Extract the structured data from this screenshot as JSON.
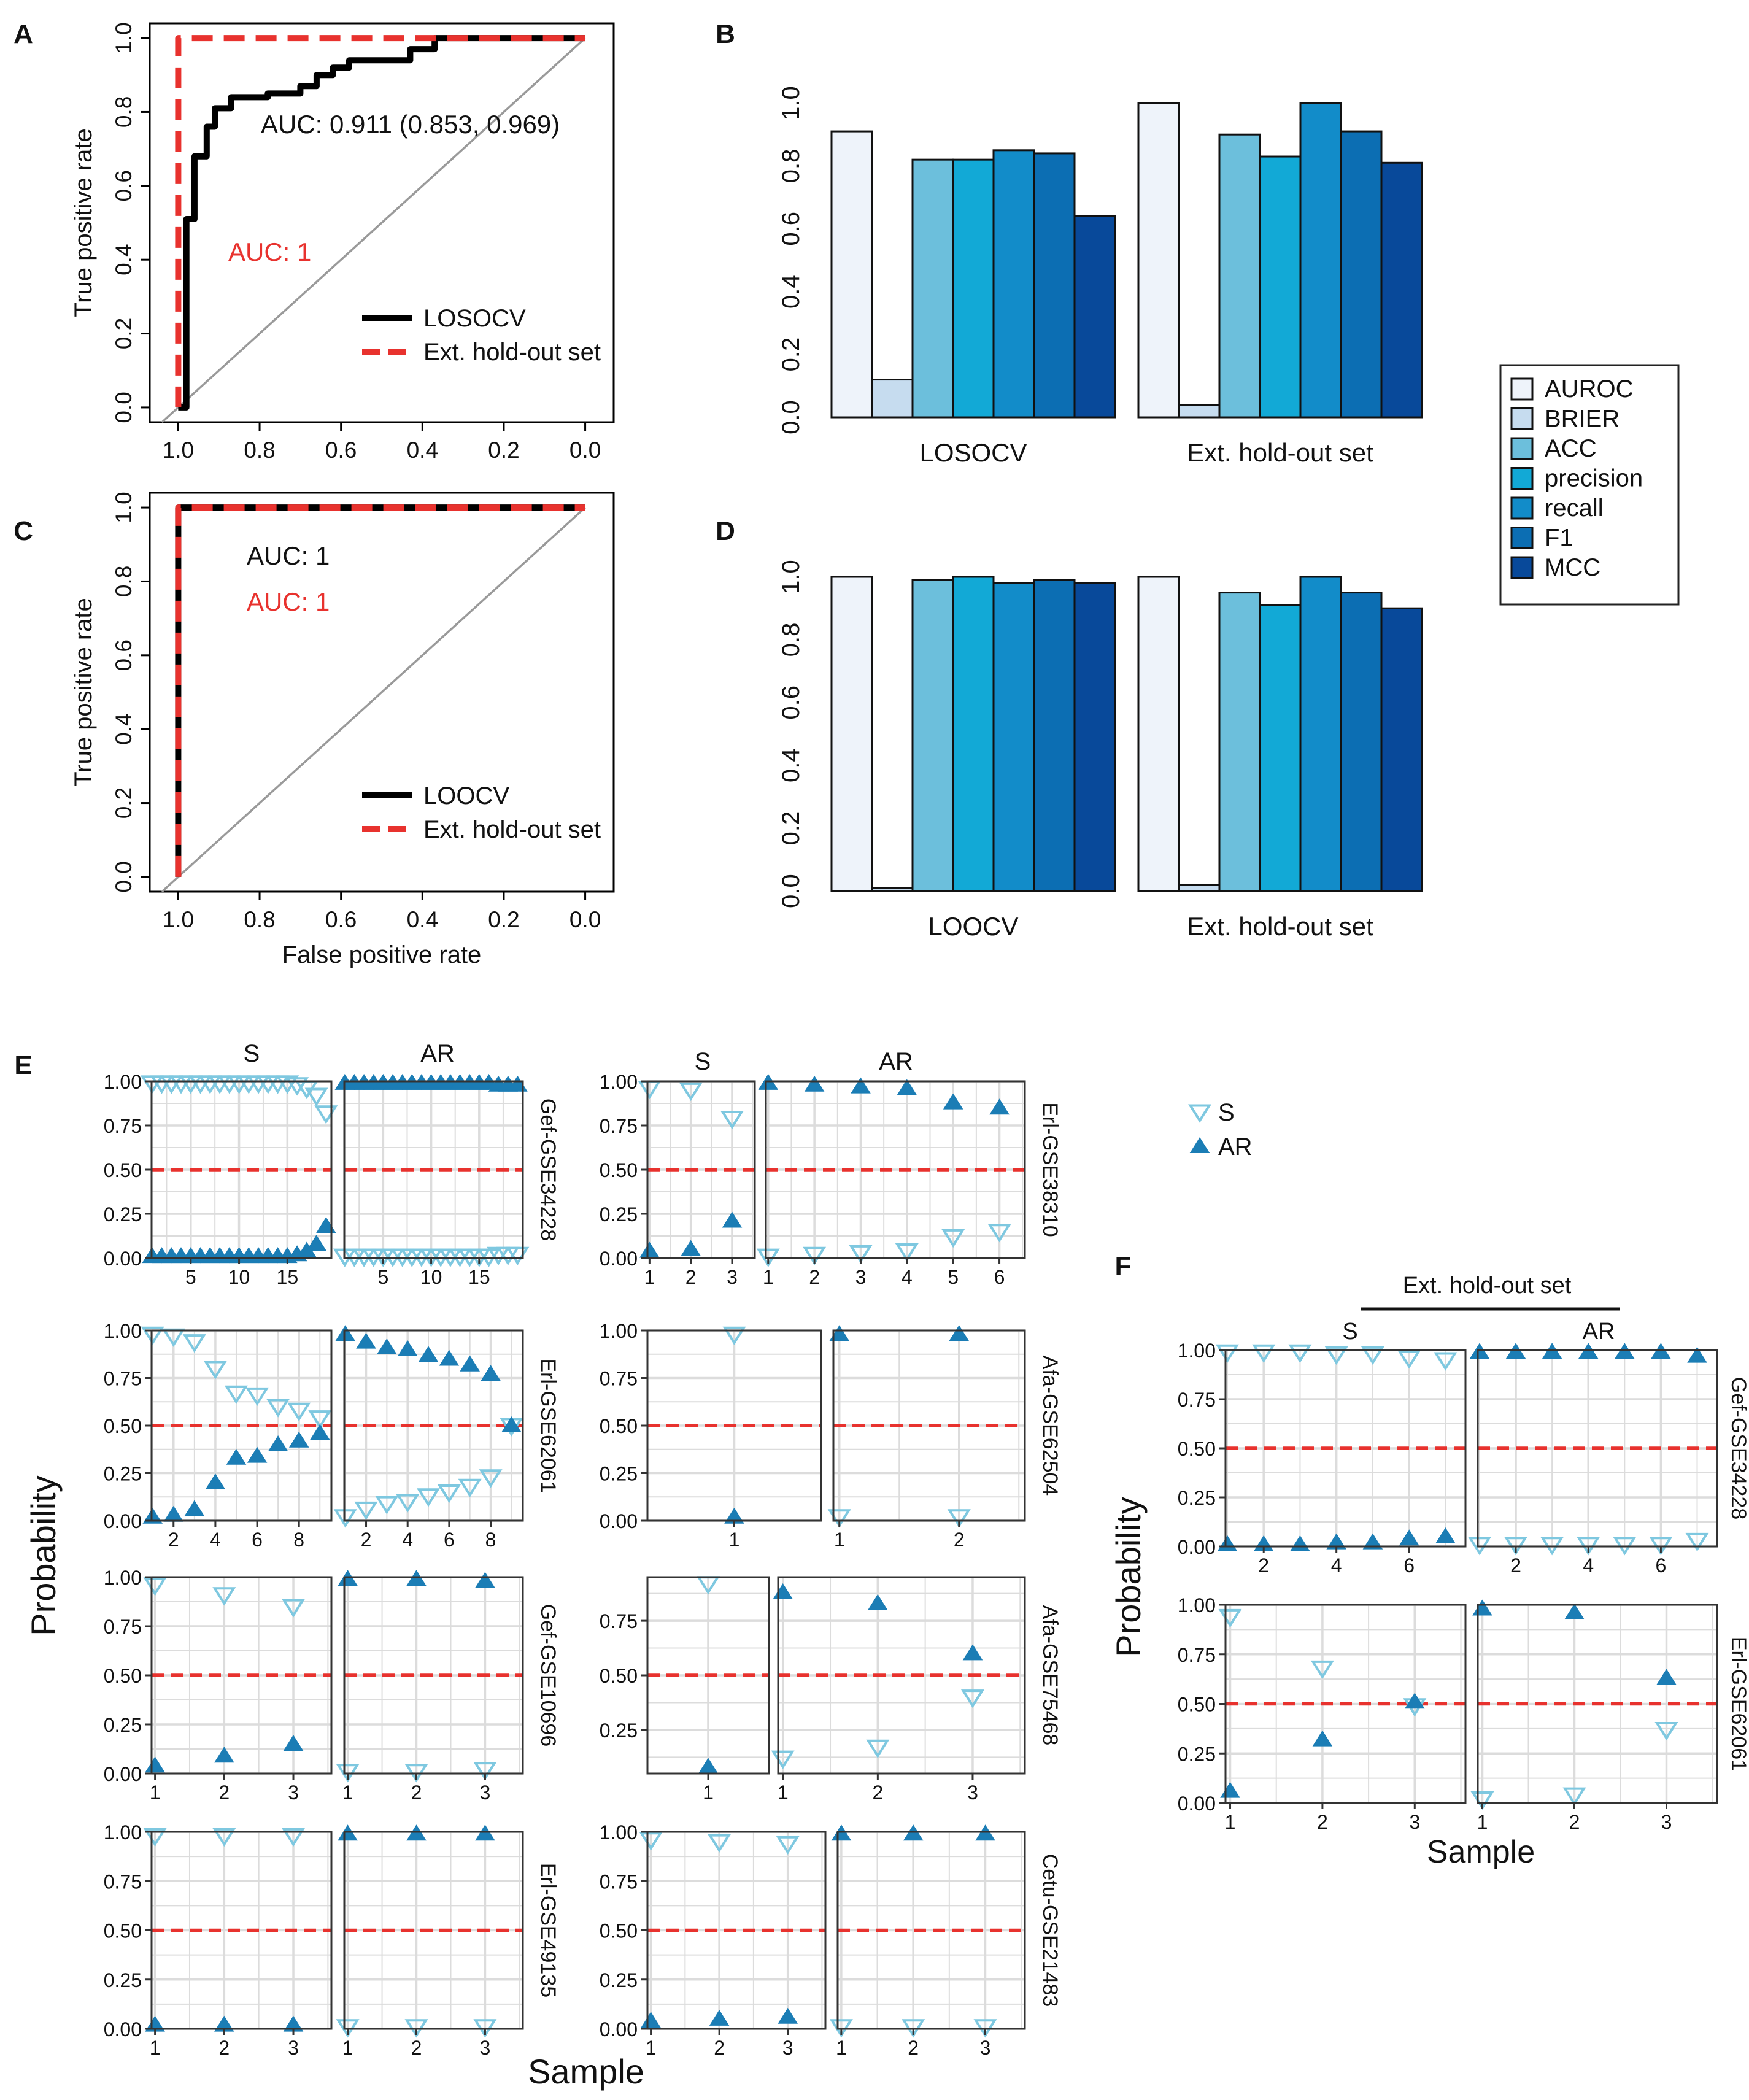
{
  "figure": {
    "panel_labels": [
      "A",
      "B",
      "C",
      "D",
      "E",
      "F"
    ]
  },
  "colors": {
    "black": "#000000",
    "red": "#e8322e",
    "diag": "#9a9a9a",
    "grid": "#dcdcdc",
    "s": "#7ec8e0",
    "ar": "#1b7db5",
    "metrics": [
      "#eef3fa",
      "#c6dcef",
      "#6cbfdc",
      "#12a9d6",
      "#128cc9",
      "#0c6eb3",
      "#08499a"
    ]
  },
  "chart_data": [
    {
      "id": "A",
      "type": "line",
      "xlabel": "",
      "ylabel": "True positive rate",
      "x_ticks": [
        "1.0",
        "0.8",
        "0.6",
        "0.4",
        "0.2",
        "0.0"
      ],
      "y_ticks": [
        "0.0",
        "0.2",
        "0.4",
        "0.6",
        "0.8",
        "1.0"
      ],
      "annotations": [
        {
          "text": "AUC: 0.911 (0.853, 0.969)",
          "color": "black"
        },
        {
          "text": "AUC: 1",
          "color": "red"
        }
      ],
      "legend": [
        "LOSOCV",
        "Ext. hold-out set"
      ],
      "series": [
        {
          "name": "LOSOCV",
          "style": "solid",
          "points": [
            [
              1.0,
              0.0
            ],
            [
              0.98,
              0.0
            ],
            [
              0.98,
              0.51
            ],
            [
              0.96,
              0.51
            ],
            [
              0.96,
              0.68
            ],
            [
              0.93,
              0.68
            ],
            [
              0.93,
              0.76
            ],
            [
              0.91,
              0.76
            ],
            [
              0.91,
              0.81
            ],
            [
              0.87,
              0.81
            ],
            [
              0.87,
              0.84
            ],
            [
              0.78,
              0.84
            ],
            [
              0.78,
              0.85
            ],
            [
              0.7,
              0.85
            ],
            [
              0.7,
              0.87
            ],
            [
              0.66,
              0.87
            ],
            [
              0.66,
              0.9
            ],
            [
              0.62,
              0.9
            ],
            [
              0.62,
              0.92
            ],
            [
              0.58,
              0.92
            ],
            [
              0.58,
              0.94
            ],
            [
              0.43,
              0.94
            ],
            [
              0.43,
              0.97
            ],
            [
              0.37,
              0.97
            ],
            [
              0.37,
              1.0
            ],
            [
              0.0,
              1.0
            ]
          ]
        },
        {
          "name": "Ext. hold-out set",
          "style": "dashed",
          "points": [
            [
              1.0,
              0.0
            ],
            [
              1.0,
              1.0
            ],
            [
              0.0,
              1.0
            ]
          ]
        }
      ]
    },
    {
      "id": "B",
      "type": "bar",
      "groups": [
        "LOSOCV",
        "Ext. hold-out set"
      ],
      "y_ticks": [
        "0.0",
        "0.2",
        "0.4",
        "0.6",
        "0.8",
        "1.0"
      ],
      "series": [
        {
          "name": "AUROC",
          "values": [
            0.91,
            1.0
          ]
        },
        {
          "name": "BRIER",
          "values": [
            0.12,
            0.04
          ]
        },
        {
          "name": "ACC",
          "values": [
            0.82,
            0.9
          ]
        },
        {
          "name": "precision",
          "values": [
            0.82,
            0.83
          ]
        },
        {
          "name": "recall",
          "values": [
            0.85,
            1.0
          ]
        },
        {
          "name": "F1",
          "values": [
            0.84,
            0.91
          ]
        },
        {
          "name": "MCC",
          "values": [
            0.64,
            0.81
          ]
        }
      ]
    },
    {
      "id": "C",
      "type": "line",
      "xlabel": "False positive rate",
      "ylabel": "True positive rate",
      "x_ticks": [
        "1.0",
        "0.8",
        "0.6",
        "0.4",
        "0.2",
        "0.0"
      ],
      "y_ticks": [
        "0.0",
        "0.2",
        "0.4",
        "0.6",
        "0.8",
        "1.0"
      ],
      "annotations": [
        {
          "text": "AUC: 1",
          "color": "black"
        },
        {
          "text": "AUC: 1",
          "color": "red"
        }
      ],
      "legend": [
        "LOOCV",
        "Ext. hold-out set"
      ],
      "series": [
        {
          "name": "LOOCV",
          "style": "solid",
          "points": [
            [
              1.0,
              0.0
            ],
            [
              1.0,
              1.0
            ],
            [
              0.0,
              1.0
            ]
          ]
        },
        {
          "name": "Ext. hold-out set",
          "style": "dashed",
          "points": [
            [
              1.0,
              0.0
            ],
            [
              1.0,
              1.0
            ],
            [
              0.0,
              1.0
            ]
          ]
        }
      ]
    },
    {
      "id": "D",
      "type": "bar",
      "groups": [
        "LOOCV",
        "Ext. hold-out set"
      ],
      "y_ticks": [
        "0.0",
        "0.2",
        "0.4",
        "0.6",
        "0.8",
        "1.0"
      ],
      "series": [
        {
          "name": "AUROC",
          "values": [
            1.0,
            1.0
          ]
        },
        {
          "name": "BRIER",
          "values": [
            0.01,
            0.02
          ]
        },
        {
          "name": "ACC",
          "values": [
            0.99,
            0.95
          ]
        },
        {
          "name": "precision",
          "values": [
            1.0,
            0.91
          ]
        },
        {
          "name": "recall",
          "values": [
            0.98,
            1.0
          ]
        },
        {
          "name": "F1",
          "values": [
            0.99,
            0.95
          ]
        },
        {
          "name": "MCC",
          "values": [
            0.98,
            0.9
          ]
        }
      ]
    },
    {
      "id": "E",
      "type": "scatter",
      "ylabel": "Probability",
      "xlabel": "Sample",
      "facet_cols": [
        "S",
        "AR"
      ],
      "legend": [
        "S",
        "AR"
      ],
      "threshold": 0.5,
      "panels": [
        {
          "label": "Gef-GSE34228",
          "y_ticks": [
            "0.00",
            "0.25",
            "0.50",
            "0.75",
            "1.00"
          ],
          "ymin": 0,
          "ymax": 1,
          "S": {
            "n": 19,
            "ticks": [
              5,
              10,
              15
            ],
            "s": [
              0.99,
              0.99,
              0.99,
              0.99,
              0.99,
              0.99,
              0.99,
              0.99,
              0.99,
              0.99,
              0.99,
              0.99,
              0.99,
              0.99,
              0.99,
              0.98,
              0.96,
              0.92,
              0.82
            ],
            "ar": [
              0.01,
              0.01,
              0.01,
              0.01,
              0.01,
              0.01,
              0.01,
              0.01,
              0.01,
              0.01,
              0.01,
              0.01,
              0.01,
              0.01,
              0.01,
              0.02,
              0.04,
              0.08,
              0.18
            ]
          },
          "AR": {
            "n": 19,
            "ticks": [
              5,
              10,
              15
            ],
            "s": [
              0.01,
              0.01,
              0.01,
              0.01,
              0.01,
              0.01,
              0.01,
              0.01,
              0.01,
              0.01,
              0.01,
              0.01,
              0.01,
              0.01,
              0.01,
              0.01,
              0.02,
              0.02,
              0.02
            ],
            "ar": [
              0.99,
              0.99,
              0.99,
              0.99,
              0.99,
              0.99,
              0.99,
              0.99,
              0.99,
              0.99,
              0.99,
              0.99,
              0.99,
              0.99,
              0.99,
              0.99,
              0.98,
              0.98,
              0.98
            ]
          }
        },
        {
          "label": "Erl-GSE38310",
          "y_ticks": [
            "0.00",
            "0.25",
            "0.50",
            "0.75",
            "1.00"
          ],
          "ymin": 0,
          "ymax": 1,
          "S": {
            "n": 3,
            "ticks": [
              1,
              2,
              3
            ],
            "s": [
              0.96,
              0.95,
              0.79
            ],
            "ar": [
              0.04,
              0.05,
              0.21
            ]
          },
          "AR": {
            "n": 6,
            "ticks": [
              1,
              2,
              3,
              4,
              5,
              6
            ],
            "s": [
              0.01,
              0.02,
              0.03,
              0.04,
              0.12,
              0.15
            ],
            "ar": [
              0.99,
              0.98,
              0.97,
              0.96,
              0.88,
              0.85
            ]
          }
        },
        {
          "label": "Erl-GSE62061",
          "y_ticks": [
            "0.00",
            "0.25",
            "0.50",
            "0.75",
            "1.00"
          ],
          "ymin": 0,
          "ymax": 1,
          "S": {
            "n": 9,
            "ticks": [
              2,
              4,
              6,
              8
            ],
            "s": [
              0.98,
              0.97,
              0.94,
              0.8,
              0.67,
              0.66,
              0.6,
              0.58,
              0.54
            ],
            "ar": [
              0.02,
              0.03,
              0.06,
              0.2,
              0.33,
              0.34,
              0.4,
              0.42,
              0.46
            ]
          },
          "AR": {
            "n": 9,
            "ticks": [
              2,
              4,
              6,
              8
            ],
            "s": [
              0.02,
              0.06,
              0.09,
              0.1,
              0.13,
              0.15,
              0.18,
              0.23,
              0.5
            ],
            "ar": [
              0.98,
              0.94,
              0.91,
              0.9,
              0.87,
              0.85,
              0.82,
              0.77,
              0.5
            ]
          }
        },
        {
          "label": "Afa-GSE62504",
          "y_ticks": [
            "0.00",
            "0.25",
            "0.50",
            "0.75",
            "1.00"
          ],
          "ymin": 0,
          "ymax": 1,
          "S": {
            "n": 1,
            "ticks": [
              1
            ],
            "s": [
              0.98
            ],
            "ar": [
              0.02
            ]
          },
          "AR": {
            "n": 2,
            "ticks": [
              1,
              2
            ],
            "s": [
              0.02,
              0.02
            ],
            "ar": [
              0.98,
              0.98
            ]
          }
        },
        {
          "label": "Gef-GSE10696",
          "y_ticks": [
            "0.00",
            "0.25",
            "0.50",
            "0.75",
            "1.00"
          ],
          "ymin": 0,
          "ymax": 1,
          "S": {
            "n": 3,
            "ticks": [
              1,
              2,
              3
            ],
            "s": [
              0.96,
              0.91,
              0.85
            ],
            "ar": [
              0.04,
              0.09,
              0.15
            ]
          },
          "AR": {
            "n": 3,
            "ticks": [
              1,
              2,
              3
            ],
            "s": [
              0.01,
              0.01,
              0.02
            ],
            "ar": [
              0.99,
              0.99,
              0.98
            ]
          }
        },
        {
          "label": "Afa-GSE75468",
          "y_ticks": [
            "0.25",
            "0.50",
            "0.75"
          ],
          "ymin": 0.05,
          "ymax": 0.95,
          "S": {
            "n": 1,
            "ticks": [
              1
            ],
            "s": [
              0.92
            ],
            "ar": [
              0.08
            ]
          },
          "AR": {
            "n": 3,
            "ticks": [
              1,
              2,
              3
            ],
            "s": [
              0.12,
              0.17,
              0.4
            ],
            "ar": [
              0.88,
              0.83,
              0.6
            ]
          }
        },
        {
          "label": "Erl-GSE49135",
          "y_ticks": [
            "0.00",
            "0.25",
            "0.50",
            "0.75",
            "1.00"
          ],
          "ymin": 0,
          "ymax": 1,
          "S": {
            "n": 3,
            "ticks": [
              1,
              2,
              3
            ],
            "s": [
              0.98,
              0.98,
              0.98
            ],
            "ar": [
              0.02,
              0.02,
              0.02
            ]
          },
          "AR": {
            "n": 3,
            "ticks": [
              1,
              2,
              3
            ],
            "s": [
              0.01,
              0.01,
              0.01
            ],
            "ar": [
              0.99,
              0.99,
              0.99
            ]
          }
        },
        {
          "label": "Cetu-GSE21483",
          "y_ticks": [
            "0.00",
            "0.25",
            "0.50",
            "0.75",
            "1.00"
          ],
          "ymin": 0,
          "ymax": 1,
          "S": {
            "n": 3,
            "ticks": [
              1,
              2,
              3
            ],
            "s": [
              0.96,
              0.95,
              0.94
            ],
            "ar": [
              0.04,
              0.05,
              0.06
            ]
          },
          "AR": {
            "n": 3,
            "ticks": [
              1,
              2,
              3
            ],
            "s": [
              0.01,
              0.01,
              0.01
            ],
            "ar": [
              0.99,
              0.99,
              0.99
            ]
          }
        }
      ]
    },
    {
      "id": "F",
      "type": "scatter",
      "title": "Ext. hold-out set",
      "ylabel": "Probability",
      "xlabel": "Sample",
      "facet_cols": [
        "S",
        "AR"
      ],
      "threshold": 0.5,
      "panels": [
        {
          "label": "Gef-GSE34228",
          "y_ticks": [
            "0.00",
            "0.25",
            "0.50",
            "0.75",
            "1.00"
          ],
          "ymin": 0,
          "ymax": 1,
          "S": {
            "n": 7,
            "ticks": [
              2,
              4,
              6
            ],
            "s": [
              0.99,
              0.99,
              0.99,
              0.98,
              0.98,
              0.96,
              0.95
            ],
            "ar": [
              0.01,
              0.01,
              0.01,
              0.02,
              0.02,
              0.04,
              0.05
            ]
          },
          "AR": {
            "n": 7,
            "ticks": [
              2,
              4,
              6
            ],
            "s": [
              0.01,
              0.01,
              0.01,
              0.01,
              0.01,
              0.01,
              0.03
            ],
            "ar": [
              0.99,
              0.99,
              0.99,
              0.99,
              0.99,
              0.99,
              0.97
            ]
          }
        },
        {
          "label": "Erl-GSE62061",
          "y_ticks": [
            "0.00",
            "0.25",
            "0.50",
            "0.75",
            "1.00"
          ],
          "ymin": 0,
          "ymax": 1,
          "S": {
            "n": 3,
            "ticks": [
              1,
              2,
              3
            ],
            "s": [
              0.94,
              0.68,
              0.49
            ],
            "ar": [
              0.06,
              0.32,
              0.51
            ]
          },
          "AR": {
            "n": 3,
            "ticks": [
              1,
              2,
              3
            ],
            "s": [
              0.02,
              0.04,
              0.37
            ],
            "ar": [
              0.98,
              0.96,
              0.63
            ]
          }
        }
      ]
    }
  ]
}
